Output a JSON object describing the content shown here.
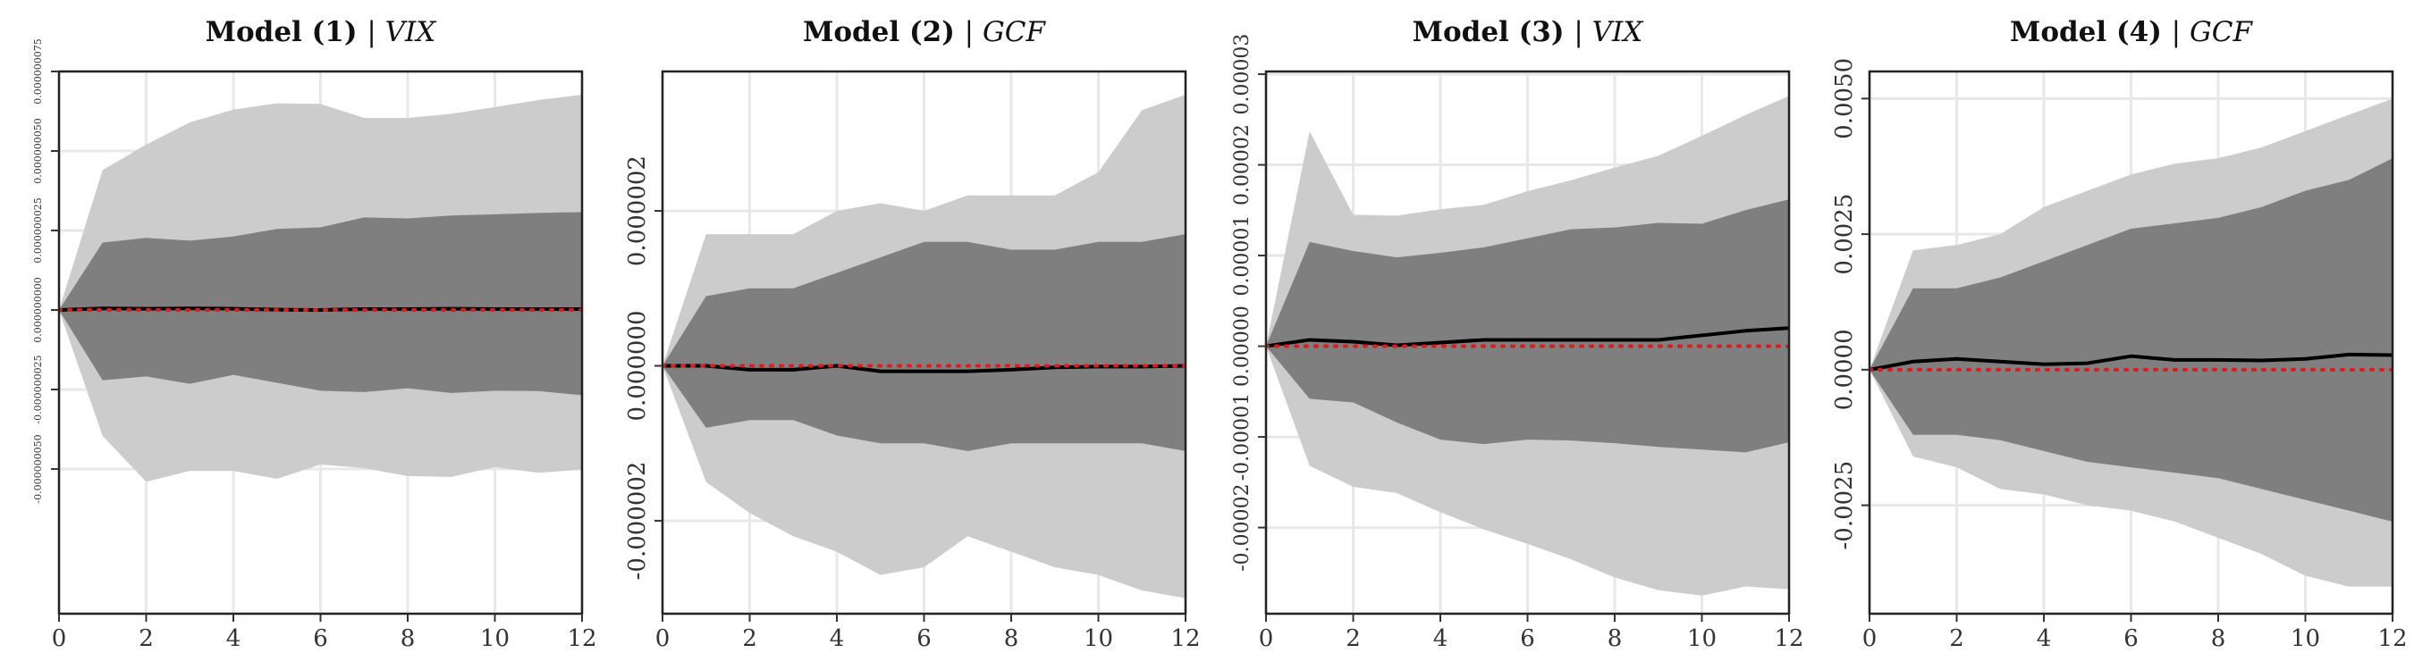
{
  "chart_data": [
    {
      "type": "area",
      "title": "Model (1)",
      "title_variable": "VIX",
      "title_separator": "|",
      "x": [
        0,
        1,
        2,
        3,
        4,
        5,
        6,
        7,
        8,
        9,
        10,
        11,
        12
      ],
      "xlim": [
        0,
        12
      ],
      "xticks": [
        0,
        2,
        4,
        6,
        8,
        10,
        12
      ],
      "xtick_labels": [
        "0",
        "2",
        "4",
        "6",
        "8",
        "10",
        "12"
      ],
      "ylim": [
        -9.55e-08,
        7.5e-08
      ],
      "yticks": [
        -5e-08,
        -2.5e-08,
        0,
        2.5e-08,
        5e-08,
        7.5e-08
      ],
      "ytick_labels": [
        "-0.000000050",
        "-0.000000025",
        "0.000000000",
        "0.000000025",
        "0.000000050",
        "0.000000075"
      ],
      "ytick_font_size": 11,
      "series": [
        {
          "role": "outer_band",
          "color": "#cccccc",
          "upper": [
            0,
            4.4e-08,
            5.2e-08,
            5.9e-08,
            6.3e-08,
            6.5e-08,
            6.48e-08,
            6.04e-08,
            6.04e-08,
            6.17e-08,
            6.38e-08,
            6.6e-08,
            6.77e-08
          ],
          "lower": [
            0,
            -3.96e-08,
            -5.4e-08,
            -5.06e-08,
            -5.06e-08,
            -5.31e-08,
            -4.86e-08,
            -4.97e-08,
            -5.22e-08,
            -5.25e-08,
            -4.94e-08,
            -5.12e-08,
            -5.02e-08
          ]
        },
        {
          "role": "inner_band",
          "color": "#7f7f7f",
          "upper": [
            0,
            2.12e-08,
            2.27e-08,
            2.18e-08,
            2.31e-08,
            2.55e-08,
            2.6e-08,
            2.91e-08,
            2.88e-08,
            2.97e-08,
            3.01e-08,
            3.05e-08,
            3.08e-08
          ],
          "lower": [
            0,
            -2.21e-08,
            -2.09e-08,
            -2.32e-08,
            -2.04e-08,
            -2.29e-08,
            -2.54e-08,
            -2.58e-08,
            -2.46e-08,
            -2.61e-08,
            -2.54e-08,
            -2.55e-08,
            -2.68e-08
          ]
        },
        {
          "role": "median",
          "color": "#000000",
          "values": [
            0,
            5e-10,
            4e-10,
            5e-10,
            4e-10,
            1e-10,
            0,
            3e-10,
            3e-10,
            4e-10,
            3e-10,
            3e-10,
            3e-10
          ]
        },
        {
          "role": "zero_line",
          "color": "#e0191c",
          "values": [
            0,
            0,
            0,
            0,
            0,
            0,
            0,
            0,
            0,
            0,
            0,
            0,
            0
          ]
        }
      ]
    },
    {
      "type": "area",
      "title": "Model (2)",
      "title_variable": "GCF",
      "title_separator": "|",
      "x": [
        0,
        1,
        2,
        3,
        4,
        5,
        6,
        7,
        8,
        9,
        10,
        11,
        12
      ],
      "xlim": [
        0,
        12
      ],
      "xticks": [
        0,
        2,
        4,
        6,
        8,
        10,
        12
      ],
      "xtick_labels": [
        "0",
        "2",
        "4",
        "6",
        "8",
        "10",
        "12"
      ],
      "ylim": [
        -3.2e-06,
        3.8e-06
      ],
      "yticks": [
        -2e-06,
        0,
        2e-06
      ],
      "ytick_labels": [
        "-0.000002",
        "0.000000",
        "0.000002"
      ],
      "ytick_font_size": 26,
      "series": [
        {
          "role": "outer_band",
          "color": "#cccccc",
          "upper": [
            0,
            1.7e-06,
            1.7e-06,
            1.7e-06,
            2e-06,
            2.1e-06,
            2e-06,
            2.2e-06,
            2.2e-06,
            2.2e-06,
            2.5e-06,
            3.3e-06,
            3.5e-06
          ],
          "lower": [
            0,
            -1.5e-06,
            -1.9e-06,
            -2.2e-06,
            -2.4e-06,
            -2.7e-06,
            -2.6e-06,
            -2.2e-06,
            -2.4e-06,
            -2.6e-06,
            -2.7e-06,
            -2.9e-06,
            -3e-06
          ]
        },
        {
          "role": "inner_band",
          "color": "#7f7f7f",
          "upper": [
            0,
            9e-07,
            1e-06,
            1e-06,
            1.2e-06,
            1.4e-06,
            1.6e-06,
            1.6e-06,
            1.5e-06,
            1.5e-06,
            1.6e-06,
            1.6e-06,
            1.7e-06
          ],
          "lower": [
            0,
            -8e-07,
            -7e-07,
            -7e-07,
            -9e-07,
            -1e-06,
            -1e-06,
            -1.1e-06,
            -1e-06,
            -1e-06,
            -1e-06,
            -1e-06,
            -1.1e-06
          ]
        },
        {
          "role": "median",
          "color": "#000000",
          "values": [
            0,
            0,
            -5e-08,
            -5e-08,
            0,
            -7e-08,
            -7e-08,
            -7e-08,
            -5e-08,
            -2e-08,
            -1e-08,
            -1e-08,
            0
          ]
        },
        {
          "role": "zero_line",
          "color": "#e0191c",
          "values": [
            0,
            0,
            0,
            0,
            0,
            0,
            0,
            0,
            0,
            0,
            0,
            0,
            0
          ]
        }
      ]
    },
    {
      "type": "area",
      "title": "Model (3)",
      "title_variable": "VIX",
      "title_separator": "|",
      "x": [
        0,
        1,
        2,
        3,
        4,
        5,
        6,
        7,
        8,
        9,
        10,
        11,
        12
      ],
      "xlim": [
        0,
        12
      ],
      "xticks": [
        0,
        2,
        4,
        6,
        8,
        10,
        12
      ],
      "xtick_labels": [
        "0",
        "2",
        "4",
        "6",
        "8",
        "10",
        "12"
      ],
      "ylim": [
        -2.95e-05,
        3.03e-05
      ],
      "yticks": [
        -2e-05,
        -1e-05,
        0,
        1e-05,
        2e-05,
        3e-05
      ],
      "ytick_labels": [
        "-0.00002",
        "-0.00001",
        "0.00000",
        "0.00001",
        "0.00002",
        "0.00003"
      ],
      "ytick_font_size": 22,
      "series": [
        {
          "role": "outer_band",
          "color": "#cccccc",
          "upper": [
            0,
            2.37e-05,
            1.45e-05,
            1.44e-05,
            1.51e-05,
            1.56e-05,
            1.71e-05,
            1.83e-05,
            1.97e-05,
            2.1e-05,
            2.32e-05,
            2.55e-05,
            2.76e-05
          ],
          "lower": [
            0,
            -1.32e-05,
            -1.55e-05,
            -1.62e-05,
            -1.83e-05,
            -2.02e-05,
            -2.18e-05,
            -2.35e-05,
            -2.55e-05,
            -2.69e-05,
            -2.75e-05,
            -2.65e-05,
            -2.68e-05
          ]
        },
        {
          "role": "inner_band",
          "color": "#7f7f7f",
          "upper": [
            0,
            1.15e-05,
            1.05e-05,
            9.8e-06,
            1.03e-05,
            1.09e-05,
            1.19e-05,
            1.29e-05,
            1.31e-05,
            1.36e-05,
            1.35e-05,
            1.5e-05,
            1.62e-05
          ],
          "lower": [
            0,
            -5.8e-06,
            -6.2e-06,
            -8.4e-06,
            -1.03e-05,
            -1.08e-05,
            -1.03e-05,
            -1.04e-05,
            -1.07e-05,
            -1.11e-05,
            -1.14e-05,
            -1.17e-05,
            -1.06e-05
          ]
        },
        {
          "role": "median",
          "color": "#000000",
          "values": [
            0,
            7e-07,
            5e-07,
            1e-07,
            4e-07,
            7e-07,
            7e-07,
            7e-07,
            7e-07,
            7e-07,
            1.2e-06,
            1.7e-06,
            2e-06
          ]
        },
        {
          "role": "zero_line",
          "color": "#e0191c",
          "values": [
            0,
            0,
            0,
            0,
            0,
            0,
            0,
            0,
            0,
            0,
            0,
            0,
            0
          ]
        }
      ]
    },
    {
      "type": "area",
      "title": "Model (4)",
      "title_variable": "GCF",
      "title_separator": "|",
      "x": [
        0,
        1,
        2,
        3,
        4,
        5,
        6,
        7,
        8,
        9,
        10,
        11,
        12
      ],
      "xlim": [
        0,
        12
      ],
      "xticks": [
        0,
        2,
        4,
        6,
        8,
        10,
        12
      ],
      "xtick_labels": [
        "0",
        "2",
        "4",
        "6",
        "8",
        "10",
        "12"
      ],
      "ylim": [
        -0.0045,
        0.0055
      ],
      "yticks": [
        -0.0025,
        0,
        0.0025,
        0.005
      ],
      "ytick_labels": [
        "-0.0025",
        "0.0000",
        "0.0025",
        "0.0050"
      ],
      "ytick_font_size": 26,
      "series": [
        {
          "role": "outer_band",
          "color": "#cccccc",
          "upper": [
            0,
            0.0022,
            0.0023,
            0.0025,
            0.003,
            0.0033,
            0.0036,
            0.0038,
            0.0039,
            0.0041,
            0.0044,
            0.0047,
            0.005
          ],
          "lower": [
            0,
            -0.0016,
            -0.0018,
            -0.0022,
            -0.0023,
            -0.0025,
            -0.0026,
            -0.0028,
            -0.0031,
            -0.0034,
            -0.0038,
            -0.004,
            -0.004
          ]
        },
        {
          "role": "inner_band",
          "color": "#7f7f7f",
          "upper": [
            0,
            0.0015,
            0.0015,
            0.0017,
            0.002,
            0.0023,
            0.0026,
            0.0027,
            0.0028,
            0.003,
            0.0033,
            0.0035,
            0.0039
          ],
          "lower": [
            0,
            -0.0012,
            -0.0012,
            -0.0013,
            -0.0015,
            -0.0017,
            -0.0018,
            -0.0019,
            -0.002,
            -0.0022,
            -0.0024,
            -0.0026,
            -0.0028
          ]
        },
        {
          "role": "median",
          "color": "#000000",
          "values": [
            0,
            0.00015,
            0.0002,
            0.00015,
            0.0001,
            0.00012,
            0.00025,
            0.00018,
            0.00018,
            0.00017,
            0.0002,
            0.00028,
            0.00027
          ]
        },
        {
          "role": "zero_line",
          "color": "#e0191c",
          "values": [
            0,
            0,
            0,
            0,
            0,
            0,
            0,
            0,
            0,
            0,
            0,
            0,
            0
          ]
        }
      ]
    }
  ]
}
